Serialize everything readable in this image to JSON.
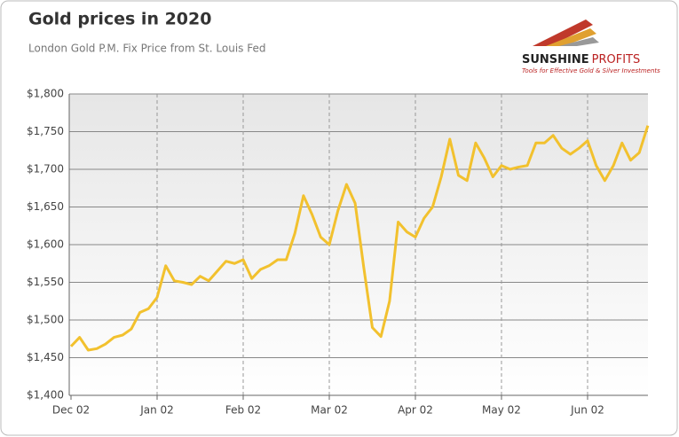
{
  "chart_data": {
    "type": "line",
    "title": "Gold prices in 2020",
    "subtitle": "London Gold P.M. Fix Price from St. Louis Fed",
    "categories": [
      "Dec 02",
      null,
      null,
      null,
      null,
      null,
      null,
      null,
      null,
      null,
      "Jan 02",
      null,
      null,
      null,
      null,
      null,
      null,
      null,
      null,
      null,
      "Feb 02",
      null,
      null,
      null,
      null,
      null,
      null,
      null,
      null,
      null,
      "Mar 02",
      null,
      null,
      null,
      null,
      null,
      null,
      null,
      null,
      null,
      "Apr 02",
      null,
      null,
      null,
      null,
      null,
      null,
      null,
      null,
      null,
      "May 02",
      null,
      null,
      null,
      null,
      null,
      null,
      null,
      null,
      null,
      "Jun 02",
      null,
      null,
      null,
      null,
      null,
      null,
      null
    ],
    "series": [
      {
        "name": "Gold price",
        "color": "#f2c12e",
        "values": [
          1465,
          1477,
          1460,
          1462,
          1468,
          1477,
          1480,
          1488,
          1510,
          1515,
          1530,
          1572,
          1552,
          1550,
          1547,
          1558,
          1552,
          1565,
          1578,
          1575,
          1580,
          1555,
          1567,
          1572,
          1580,
          1580,
          1615,
          1665,
          1640,
          1610,
          1600,
          1645,
          1680,
          1655,
          1570,
          1490,
          1478,
          1525,
          1630,
          1617,
          1610,
          1635,
          1650,
          1690,
          1740,
          1692,
          1685,
          1735,
          1715,
          1690,
          1705,
          1700,
          1703,
          1705,
          1735,
          1735,
          1745,
          1728,
          1720,
          1728,
          1738,
          1705,
          1685,
          1705,
          1735,
          1712,
          1722,
          1758
        ]
      }
    ],
    "ylim": [
      1400,
      1800
    ],
    "yticks": [
      {
        "value": 1400,
        "label": "$1,400"
      },
      {
        "value": 1450,
        "label": "$1,450"
      },
      {
        "value": 1500,
        "label": "$1,500"
      },
      {
        "value": 1550,
        "label": "$1,550"
      },
      {
        "value": 1600,
        "label": "$1,600"
      },
      {
        "value": 1650,
        "label": "$1,650"
      },
      {
        "value": 1700,
        "label": "$1,700"
      },
      {
        "value": 1750,
        "label": "$1,750"
      },
      {
        "value": 1800,
        "label": "$1,800"
      }
    ],
    "grid": true
  },
  "logo": {
    "brand": "SUNSHINE",
    "brand2": "PROFITS",
    "tagline": "Tools for Effective Gold & Silver Investments"
  }
}
